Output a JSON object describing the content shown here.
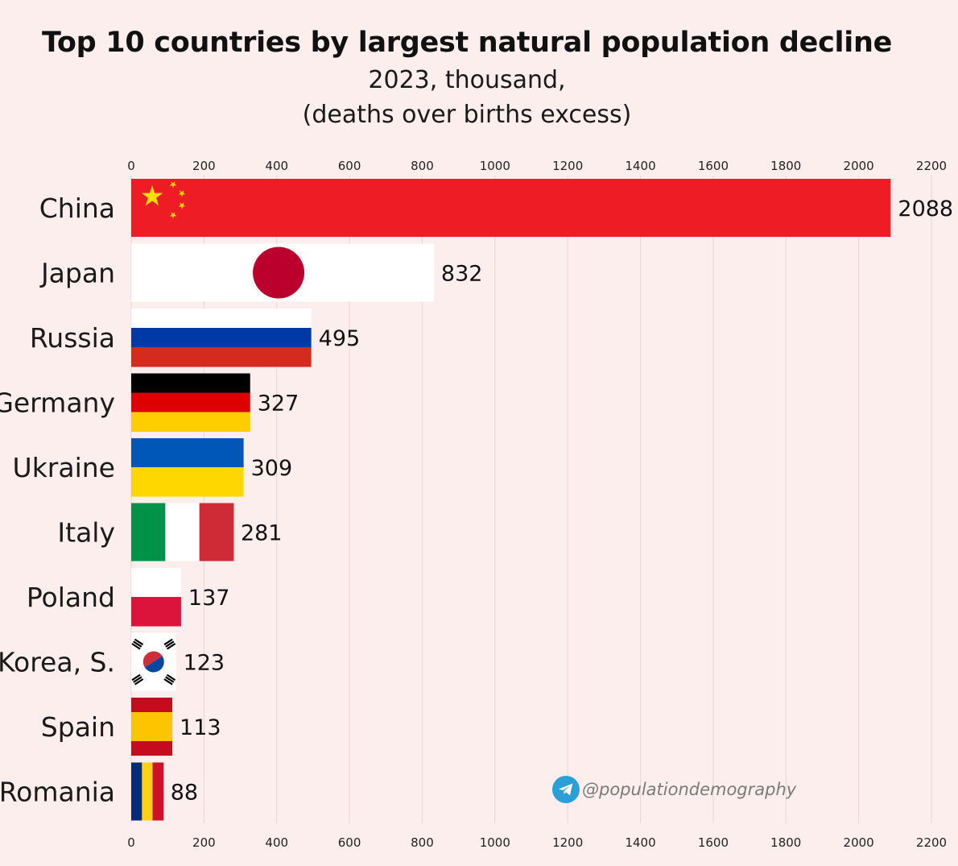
{
  "title": {
    "main": "Top 10 countries by largest natural population decline",
    "sub1": "2023, thousand,",
    "sub2": "(deaths over births excess)"
  },
  "chart_data": {
    "type": "bar",
    "orientation": "horizontal",
    "title": "Top 10 countries by largest natural population decline, 2023, thousand, (deaths over births excess)",
    "xlabel": "",
    "ylabel": "",
    "xlim": [
      0,
      2200
    ],
    "xticks": [
      0,
      200,
      400,
      600,
      800,
      1000,
      1200,
      1400,
      1600,
      1800,
      2000,
      2200
    ],
    "grid": true,
    "categories": [
      "China",
      "Japan",
      "Russia",
      "Germany",
      "Ukraine",
      "Italy",
      "Poland",
      "Korea, S.",
      "Spain",
      "Romania"
    ],
    "values": [
      2088,
      832,
      495,
      327,
      309,
      281,
      137,
      123,
      113,
      88
    ]
  },
  "watermark": {
    "handle": "@populationdemography",
    "icon": "telegram-icon"
  },
  "colors": {
    "background": "#fdeeee",
    "china_red": "#ee1c25",
    "china_star": "#ffde00",
    "japan_red": "#bc002d",
    "russia_blue": "#0039a6",
    "russia_red": "#d52b1e",
    "germany_black": "#000000",
    "germany_red": "#dd0000",
    "germany_gold": "#ffce00",
    "ukraine_blue": "#0057b7",
    "ukraine_yellow": "#ffd700",
    "italy_green": "#009246",
    "italy_red": "#ce2b37",
    "poland_red": "#dc143c",
    "korea_red": "#cd2e3a",
    "korea_blue": "#0047a0",
    "spain_red": "#c60b1e",
    "spain_yellow": "#ffc400",
    "romania_blue": "#002b7f",
    "romania_yellow": "#fcd116",
    "romania_red": "#ce1126"
  }
}
